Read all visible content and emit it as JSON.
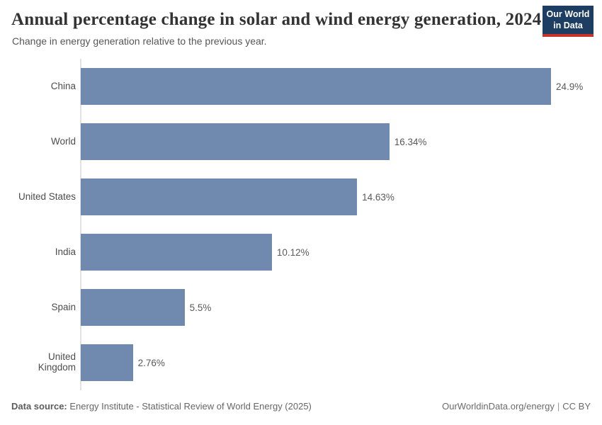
{
  "header": {
    "title": "Annual percentage change in solar and wind energy generation, 2024",
    "subtitle": "Change in energy generation relative to the previous year.",
    "logo": {
      "line1": "Our World",
      "line2": "in Data",
      "bg_color": "#1d3d63",
      "accent_color": "#c5332b"
    }
  },
  "chart_data": {
    "type": "bar",
    "orientation": "horizontal",
    "title": "Annual percentage change in solar and wind energy generation, 2024",
    "subtitle": "Change in energy generation relative to the previous year.",
    "categories": [
      "China",
      "World",
      "United States",
      "India",
      "Spain",
      "United Kingdom"
    ],
    "values": [
      24.9,
      16.34,
      14.63,
      10.12,
      5.5,
      2.76
    ],
    "value_labels": [
      "24.9%",
      "16.34%",
      "14.63%",
      "10.12%",
      "5.5%",
      "2.76%"
    ],
    "unit": "%",
    "xlim": [
      0,
      24.9
    ],
    "grid": false,
    "legend": false,
    "bar_color": "#7089ae",
    "axis_color": "#e2e2e2"
  },
  "footer": {
    "datasource_label": "Data source:",
    "datasource_text": " Energy Institute - Statistical Review of World Energy (2025)",
    "url": "OurWorldinData.org/energy",
    "separator": "|",
    "license": "CC BY"
  }
}
